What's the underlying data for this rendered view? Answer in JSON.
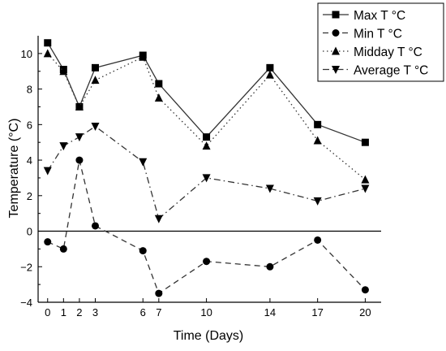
{
  "chart_data": {
    "type": "line",
    "xlabel": "Time (Days)",
    "ylabel": "Temperature (°C)",
    "xlim": [
      -0.6,
      21
    ],
    "ylim": [
      -4,
      11
    ],
    "x_ticks": [
      0,
      1,
      2,
      3,
      6,
      7,
      10,
      14,
      17,
      20
    ],
    "y_ticks": [
      -4,
      -2,
      0,
      2,
      4,
      6,
      8,
      10
    ],
    "zero_line": true,
    "grid": false,
    "legend_position": "top-right",
    "x": [
      0,
      1,
      2,
      3,
      6,
      7,
      10,
      14,
      17,
      20
    ],
    "series": [
      {
        "name": "Max T °C",
        "values": [
          10.6,
          9.1,
          7.0,
          9.2,
          9.9,
          8.3,
          5.3,
          9.2,
          6.0,
          5.0
        ],
        "marker": "square",
        "line": "solid"
      },
      {
        "name": "Min T °C",
        "values": [
          -0.6,
          -1.0,
          4.0,
          0.3,
          -1.1,
          -3.5,
          -1.7,
          -2.0,
          -0.5,
          -3.3
        ],
        "marker": "circle",
        "line": "dashed"
      },
      {
        "name": "Midday T °C",
        "values": [
          10.0,
          9.0,
          7.0,
          8.5,
          9.8,
          7.5,
          4.8,
          8.8,
          5.1,
          2.9
        ],
        "marker": "triangle-up",
        "line": "dotted"
      },
      {
        "name": "Average T °C",
        "values": [
          3.4,
          4.8,
          5.3,
          5.9,
          3.9,
          0.7,
          3.0,
          2.4,
          1.7,
          2.4
        ],
        "marker": "triangle-down",
        "line": "dashdot"
      }
    ]
  }
}
